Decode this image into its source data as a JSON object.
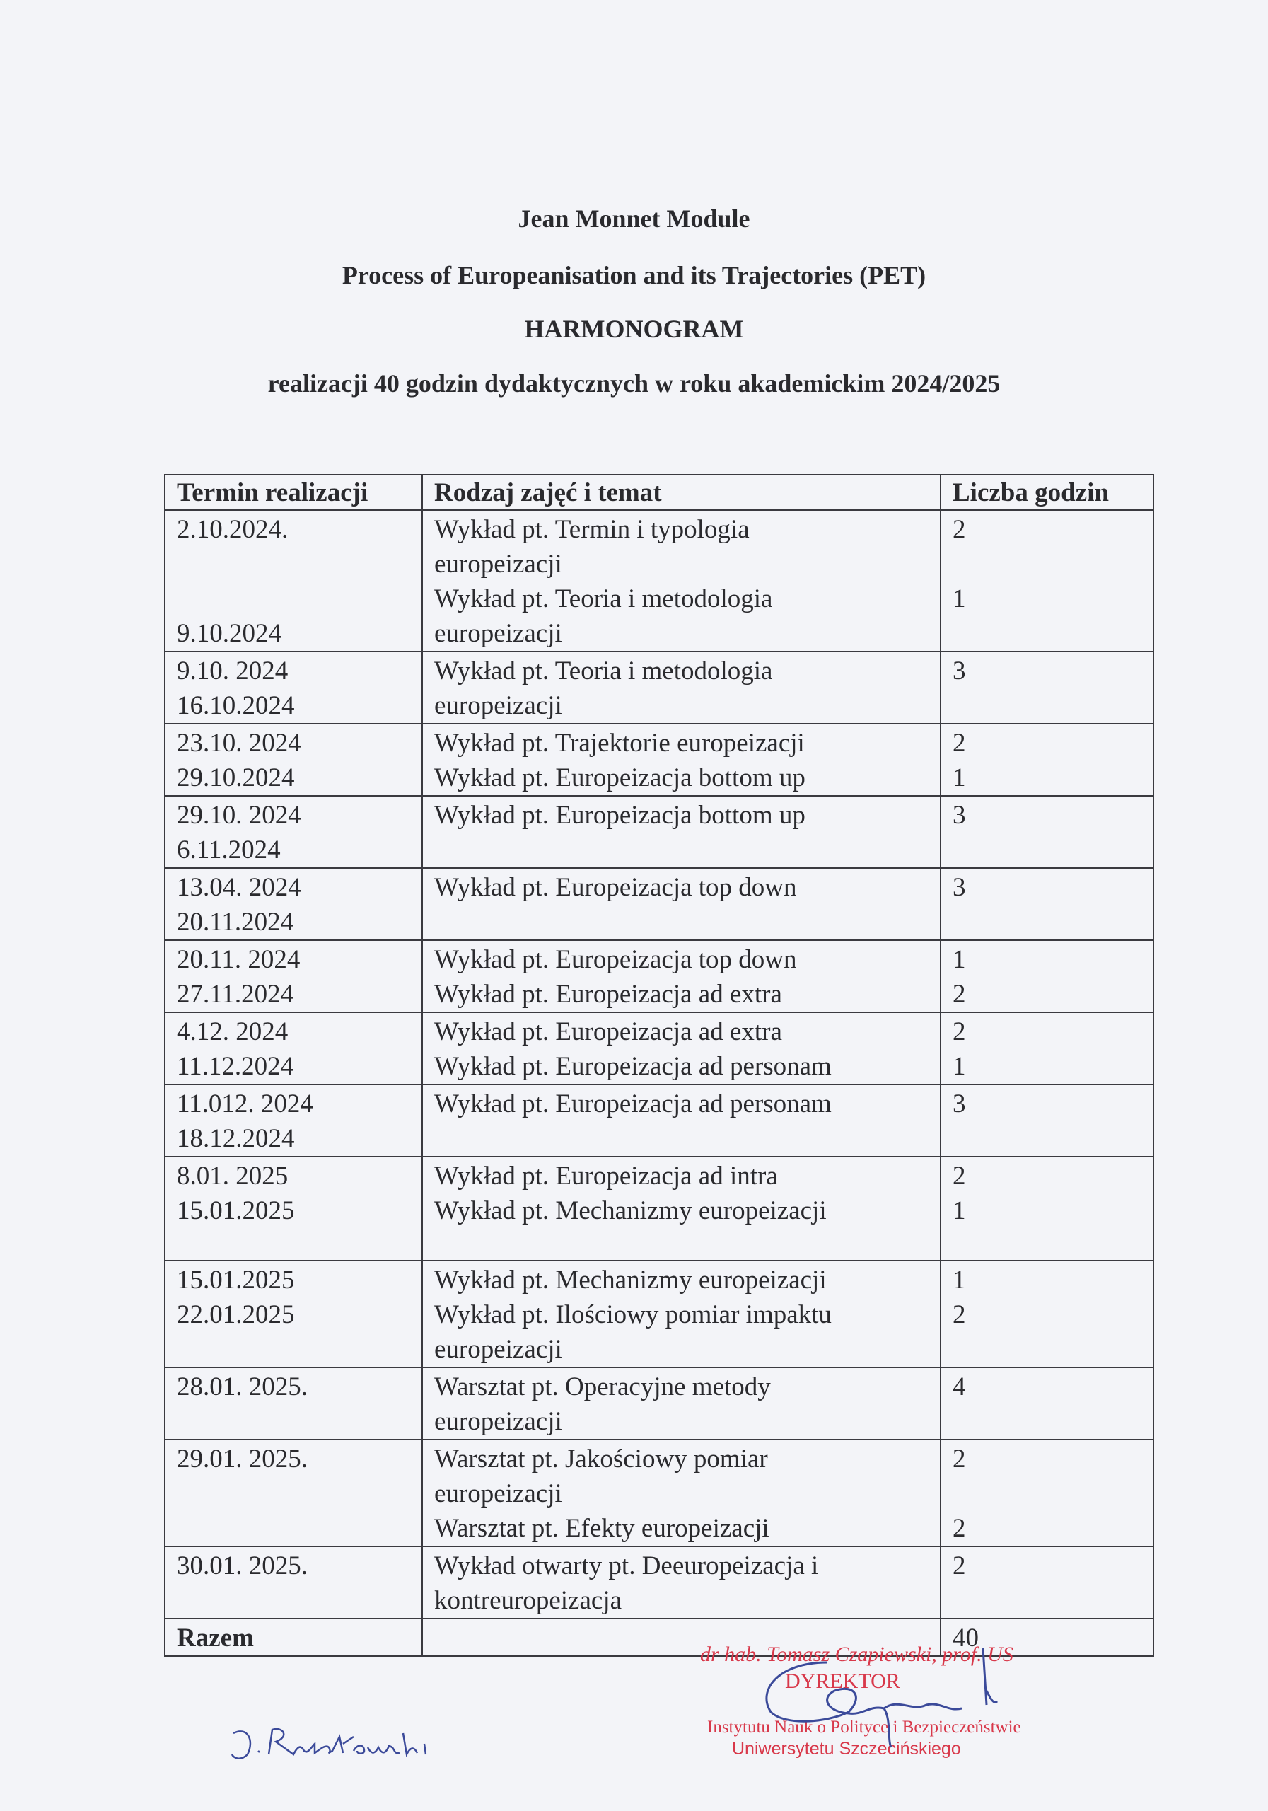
{
  "header": {
    "line1": "Jean Monnet Module",
    "line2": "Process of Europeanisation and its Trajectories (PET)",
    "line3": "HARMONOGRAM",
    "line4": "realizacji 40 godzin dydaktycznych w roku akademickim 2024/2025"
  },
  "table": {
    "columns": [
      "Termin realizacji",
      "Rodzaj zajęć i temat",
      "Liczba godzin"
    ],
    "rows": [
      {
        "date": "2.10.2024.\n\n\n9.10.2024",
        "topic": "Wykład pt. Termin i typologia\neuropeizacji\nWykład pt. Teoria i metodologia\neuropeizacji",
        "hours": "2\n\n1"
      },
      {
        "date": "9.10. 2024\n16.10.2024",
        "topic": "Wykład pt. Teoria i metodologia\neuropeizacji",
        "hours": "3"
      },
      {
        "date": "23.10. 2024\n29.10.2024",
        "topic": "Wykład pt. Trajektorie europeizacji\nWykład pt. Europeizacja bottom up",
        "hours": "2\n1"
      },
      {
        "date": "29.10. 2024\n6.11.2024",
        "topic": "Wykład pt. Europeizacja bottom up",
        "hours": "3"
      },
      {
        "date": "13.04. 2024\n20.11.2024",
        "topic": "Wykład pt. Europeizacja top down",
        "hours": "3"
      },
      {
        "date": "20.11. 2024\n27.11.2024",
        "topic": "Wykład pt. Europeizacja top down\nWykład pt. Europeizacja ad extra",
        "hours": "1\n2"
      },
      {
        "date": "4.12. 2024\n11.12.2024",
        "topic": "Wykład pt. Europeizacja ad extra\nWykład pt. Europeizacja ad personam",
        "hours": "2\n1"
      },
      {
        "date": "11.012. 2024\n18.12.2024",
        "topic": "Wykład pt. Europeizacja ad personam",
        "hours": "3"
      },
      {
        "date": "8.01. 2025\n15.01.2025",
        "topic": "Wykład pt. Europeizacja ad intra\nWykład pt. Mechanizmy europeizacji",
        "hours": "2\n1"
      },
      {
        "date": "15.01.2025\n22.01.2025",
        "topic": "Wykład pt. Mechanizmy europeizacji\nWykład pt. Ilościowy pomiar impaktu\neuropeizacji",
        "hours": "1\n2"
      },
      {
        "date": "28.01. 2025.",
        "topic": "Warsztat pt. Operacyjne metody\neuropeizacji",
        "hours": "4"
      },
      {
        "date": "29.01. 2025.",
        "topic": "Warsztat pt. Jakościowy pomiar\neuropeizacji\nWarsztat pt. Efekty europeizacji",
        "hours": "2\n\n2"
      },
      {
        "date": "30.01. 2025.",
        "topic": "Wykład otwarty pt. Deeuropeizacja i\nkontreuropeizacja",
        "hours": "2"
      }
    ],
    "total": {
      "label": "Razem",
      "topic": "",
      "hours": "40"
    }
  },
  "stamp": {
    "name": "dr hab. Tomasz Czapiewski, prof. US",
    "role": "DYREKTOR",
    "institute": "Instytutu Nauk o Polityce i Bezpieczeństwie",
    "university": "Uniwersytetu Szczecińskiego",
    "color": "#d8384a"
  },
  "signatures": {
    "left": "J. Ruszkowski",
    "ink_color": "#3b4a9a"
  }
}
